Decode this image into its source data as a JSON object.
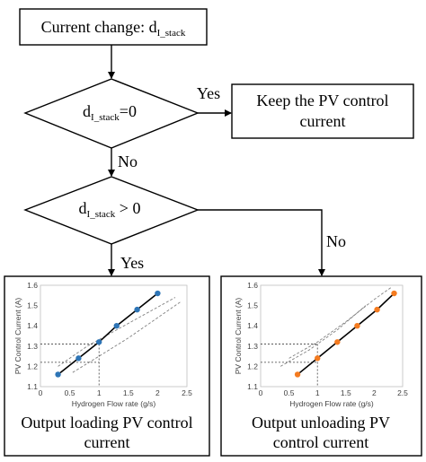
{
  "flowchart": {
    "start_box": {
      "text_main": "Current change: d",
      "text_sub": "I_stack"
    },
    "decision1": {
      "text_main": "d",
      "text_sub": "I_stack",
      "text_tail": "=0"
    },
    "yes1_label": "Yes",
    "keep_box": {
      "line1": "Keep the PV control",
      "line2": "current"
    },
    "no1_label": "No",
    "decision2": {
      "text_main": "d",
      "text_sub": "I_stack",
      "text_tail": " > 0"
    },
    "yes2_label": "Yes",
    "no2_label": "No",
    "left_caption": {
      "line1": "Output loading PV control",
      "line2": "current"
    },
    "right_caption": {
      "line1": "Output unloading PV",
      "line2": "control current"
    }
  },
  "colors": {
    "left_markers": "#2E75B6",
    "right_markers": "#F47B20",
    "line": "#000000",
    "dashed_curve": "#808080",
    "guide": "#404040"
  },
  "chart_data": [
    {
      "type": "scatter",
      "title": "",
      "xlabel": "Hydrogen Flow rate (g/s)",
      "ylabel": "PV Control Current (A)",
      "xlim": [
        0,
        2.5
      ],
      "ylim": [
        1.1,
        1.6
      ],
      "xticks": [
        "0",
        "0.5",
        "1",
        "1.5",
        "2",
        "2.5"
      ],
      "yticks": [
        "1.1",
        "1.2",
        "1.3",
        "1.4",
        "1.5",
        "1.6"
      ],
      "marker_color": "#2E75B6",
      "series": [
        {
          "x": [
            0.3,
            0.65,
            1.0,
            1.3,
            1.65,
            2.0
          ],
          "y": [
            1.16,
            1.24,
            1.32,
            1.4,
            1.48,
            1.56
          ]
        }
      ],
      "dashed_curves": [
        {
          "x": [
            0.3,
            0.8,
            1.3,
            1.8,
            2.3
          ],
          "y": [
            1.2,
            1.3,
            1.38,
            1.46,
            1.54
          ]
        },
        {
          "x": [
            0.55,
            1.0,
            1.5,
            2.0,
            2.4
          ],
          "y": [
            1.17,
            1.25,
            1.34,
            1.44,
            1.52
          ]
        }
      ],
      "guides": {
        "x": 1.0,
        "y_levels": [
          1.22,
          1.31
        ]
      }
    },
    {
      "type": "scatter",
      "title": "",
      "xlabel": "Hydrogen Flow rate (g/s)",
      "ylabel": "PV Control Current (A)",
      "xlim": [
        0,
        2.5
      ],
      "ylim": [
        1.1,
        1.6
      ],
      "xticks": [
        "0",
        "0.5",
        "1",
        "1.5",
        "2",
        "2.5"
      ],
      "yticks": [
        "1.1",
        "1.2",
        "1.3",
        "1.4",
        "1.5",
        "1.6"
      ],
      "marker_color": "#F47B20",
      "series": [
        {
          "x": [
            0.65,
            1.0,
            1.35,
            1.7,
            2.05,
            2.35
          ],
          "y": [
            1.16,
            1.24,
            1.32,
            1.4,
            1.48,
            1.56
          ]
        }
      ],
      "dashed_curves": [
        {
          "x": [
            0.35,
            0.85,
            1.35,
            1.85
          ],
          "y": [
            1.2,
            1.28,
            1.38,
            1.5
          ]
        },
        {
          "x": [
            0.5,
            1.0,
            1.5,
            2.0,
            2.3
          ],
          "y": [
            1.24,
            1.32,
            1.42,
            1.53,
            1.59
          ]
        }
      ],
      "guides": {
        "x": 1.0,
        "y_levels": [
          1.22,
          1.31
        ]
      }
    }
  ]
}
